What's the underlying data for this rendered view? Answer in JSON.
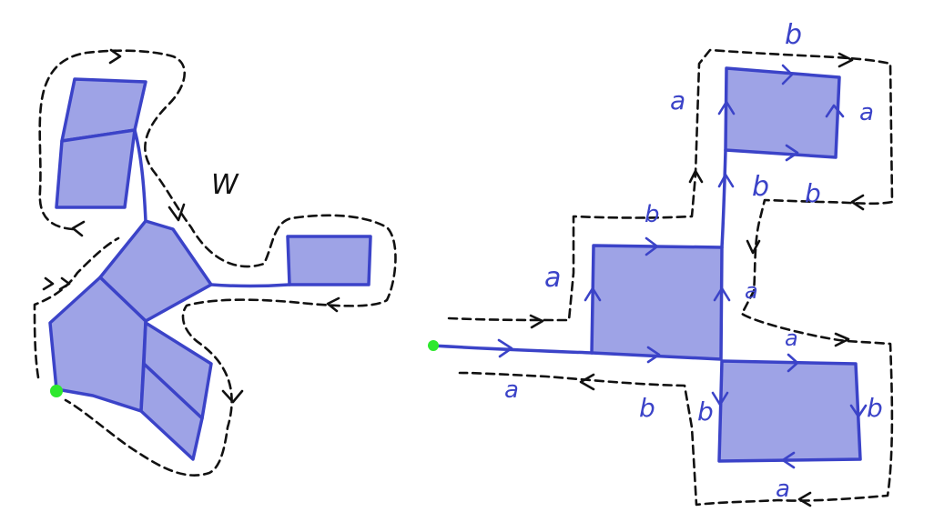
{
  "left_diagram": {
    "region_label": "W"
  },
  "right_diagram": {
    "edge_labels": {
      "top_b": "b",
      "top_left_a": "a",
      "top_right_a": "a",
      "top_bottom_b1": "b",
      "top_bottom_b2": "b",
      "mid_top_b": "b",
      "mid_left_a": "a",
      "mid_right_a": "a",
      "bot_top_a": "a",
      "bot_left_b1": "b",
      "bot_left_b2": "b",
      "bot_right_b": "b",
      "bot_bottom_a": "a",
      "tail_a": "a"
    }
  },
  "colors": {
    "face_fill": "#9ea3e6",
    "edge_stroke": "#3b43c8",
    "loop_stroke": "#111111",
    "basepoint": "#2ee82e"
  }
}
